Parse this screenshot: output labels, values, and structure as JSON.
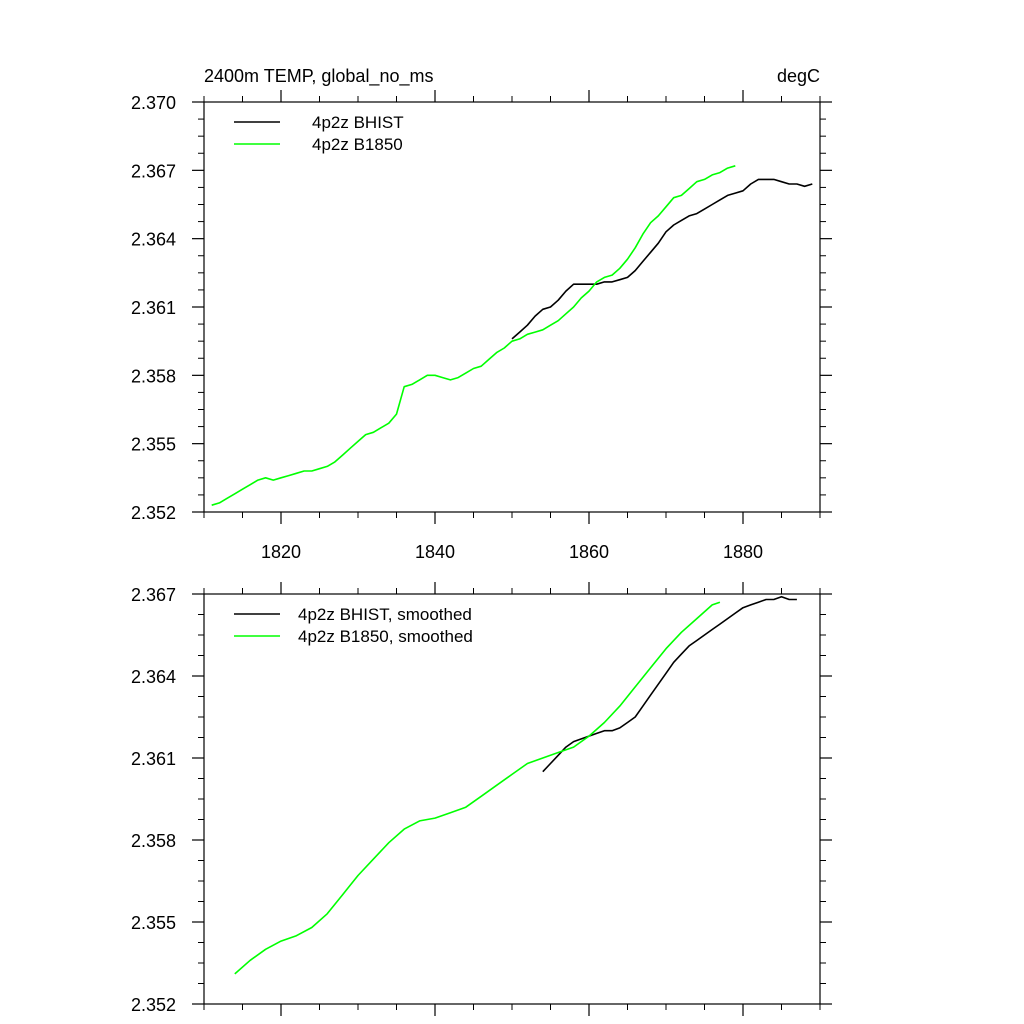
{
  "chart_data": [
    {
      "type": "line",
      "title": "2400m TEMP, global_no_ms",
      "units": "degC",
      "xlim": [
        1810,
        1890
      ],
      "ylim": [
        2.352,
        2.37
      ],
      "x_ticks": [
        1820,
        1840,
        1860,
        1880
      ],
      "x_tick_labels": [
        "1820",
        "1840",
        "1860",
        "1880"
      ],
      "y_ticks": [
        2.352,
        2.355,
        2.358,
        2.361,
        2.364,
        2.367,
        2.37
      ],
      "y_tick_labels": [
        "2.352",
        "2.355",
        "2.358",
        "2.361",
        "2.364",
        "2.367",
        "2.370"
      ],
      "grid": false,
      "legend_position": "top-left",
      "series": [
        {
          "name": "4p2z BHIST",
          "color": "#000000",
          "x": [
            1850,
            1851,
            1852,
            1853,
            1854,
            1855,
            1856,
            1857,
            1858,
            1859,
            1860,
            1861,
            1862,
            1863,
            1864,
            1865,
            1866,
            1867,
            1868,
            1869,
            1870,
            1871,
            1872,
            1873,
            1874,
            1875,
            1876,
            1877,
            1878,
            1879,
            1880,
            1881,
            1882,
            1883,
            1884,
            1885,
            1886,
            1887,
            1888,
            1889
          ],
          "y": [
            2.3596,
            2.3599,
            2.3602,
            2.3606,
            2.3609,
            2.361,
            2.3613,
            2.3617,
            2.362,
            2.362,
            2.362,
            2.362,
            2.3621,
            2.3621,
            2.3622,
            2.3623,
            2.3626,
            2.363,
            2.3634,
            2.3638,
            2.3643,
            2.3646,
            2.3648,
            2.365,
            2.3651,
            2.3653,
            2.3655,
            2.3657,
            2.3659,
            2.366,
            2.3661,
            2.3664,
            2.3666,
            2.3666,
            2.3666,
            2.3665,
            2.3664,
            2.3664,
            2.3663,
            2.3664
          ]
        },
        {
          "name": "4p2z B1850",
          "color": "#00ff00",
          "x": [
            1811,
            1812,
            1813,
            1814,
            1815,
            1816,
            1817,
            1818,
            1819,
            1820,
            1821,
            1822,
            1823,
            1824,
            1825,
            1826,
            1827,
            1828,
            1829,
            1830,
            1831,
            1832,
            1833,
            1834,
            1835,
            1836,
            1837,
            1838,
            1839,
            1840,
            1841,
            1842,
            1843,
            1844,
            1845,
            1846,
            1847,
            1848,
            1849,
            1850,
            1851,
            1852,
            1853,
            1854,
            1855,
            1856,
            1857,
            1858,
            1859,
            1860,
            1861,
            1862,
            1863,
            1864,
            1865,
            1866,
            1867,
            1868,
            1869,
            1870,
            1871,
            1872,
            1873,
            1874,
            1875,
            1876,
            1877,
            1878,
            1879
          ],
          "y": [
            2.3523,
            2.3524,
            2.3526,
            2.3528,
            2.353,
            2.3532,
            2.3534,
            2.3535,
            2.3534,
            2.3535,
            2.3536,
            2.3537,
            2.3538,
            2.3538,
            2.3539,
            2.354,
            2.3542,
            2.3545,
            2.3548,
            2.3551,
            2.3554,
            2.3555,
            2.3557,
            2.3559,
            2.3563,
            2.3575,
            2.3576,
            2.3578,
            2.358,
            2.358,
            2.3579,
            2.3578,
            2.3579,
            2.3581,
            2.3583,
            2.3584,
            2.3587,
            2.359,
            2.3592,
            2.3595,
            2.3596,
            2.3598,
            2.3599,
            2.36,
            2.3602,
            2.3604,
            2.3607,
            2.361,
            2.3614,
            2.3617,
            2.3621,
            2.3623,
            2.3624,
            2.3627,
            2.3631,
            2.3636,
            2.3642,
            2.3647,
            2.365,
            2.3654,
            2.3658,
            2.3659,
            2.3662,
            2.3665,
            2.3666,
            2.3668,
            2.3669,
            2.3671,
            2.3672
          ]
        }
      ]
    },
    {
      "type": "line",
      "xlim": [
        1810,
        1890
      ],
      "ylim": [
        2.352,
        2.367
      ],
      "x_ticks": [
        1820,
        1840,
        1860,
        1880
      ],
      "y_ticks": [
        2.352,
        2.355,
        2.358,
        2.361,
        2.364,
        2.367
      ],
      "y_tick_labels": [
        "2.352",
        "2.355",
        "2.358",
        "2.361",
        "2.364",
        "2.367"
      ],
      "grid": false,
      "legend_position": "top-left",
      "series": [
        {
          "name": "4p2z BHIST, smoothed",
          "color": "#000000",
          "x": [
            1854,
            1855,
            1856,
            1857,
            1858,
            1859,
            1860,
            1861,
            1862,
            1863,
            1864,
            1865,
            1866,
            1867,
            1868,
            1869,
            1870,
            1871,
            1872,
            1873,
            1874,
            1875,
            1876,
            1877,
            1878,
            1879,
            1880,
            1881,
            1882,
            1883,
            1884,
            1885,
            1886,
            1887
          ],
          "y": [
            2.3605,
            2.3608,
            2.3611,
            2.3614,
            2.3616,
            2.3617,
            2.3618,
            2.3619,
            2.362,
            2.362,
            2.3621,
            2.3623,
            2.3625,
            2.3629,
            2.3633,
            2.3637,
            2.3641,
            2.3645,
            2.3648,
            2.3651,
            2.3653,
            2.3655,
            2.3657,
            2.3659,
            2.3661,
            2.3663,
            2.3665,
            2.3666,
            2.3667,
            2.3668,
            2.3668,
            2.3669,
            2.3668,
            2.3668
          ]
        },
        {
          "name": "4p2z B1850, smoothed",
          "color": "#00ff00",
          "x": [
            1814,
            1816,
            1818,
            1820,
            1822,
            1824,
            1826,
            1828,
            1830,
            1832,
            1834,
            1836,
            1838,
            1840,
            1842,
            1844,
            1846,
            1848,
            1850,
            1852,
            1854,
            1856,
            1858,
            1860,
            1862,
            1864,
            1866,
            1868,
            1870,
            1872,
            1874,
            1876,
            1877
          ],
          "y": [
            2.3531,
            2.3536,
            2.354,
            2.3543,
            2.3545,
            2.3548,
            2.3553,
            2.356,
            2.3567,
            2.3573,
            2.3579,
            2.3584,
            2.3587,
            2.3588,
            2.359,
            2.3592,
            2.3596,
            2.36,
            2.3604,
            2.3608,
            2.361,
            2.3612,
            2.3614,
            2.3618,
            2.3623,
            2.3629,
            2.3636,
            2.3643,
            2.365,
            2.3656,
            2.3661,
            2.3666,
            2.3667
          ]
        }
      ]
    }
  ]
}
